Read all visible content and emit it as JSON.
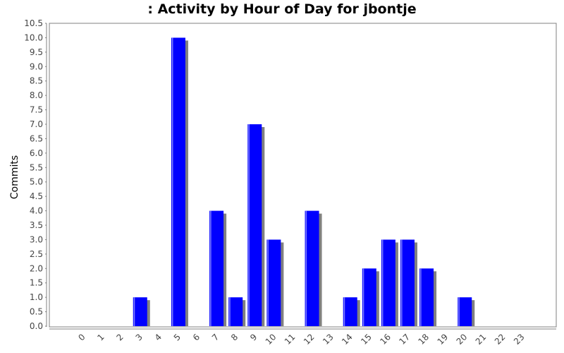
{
  "chart_data": {
    "type": "bar",
    "title": ": Activity by Hour of Day for jbontje",
    "xlabel": "",
    "ylabel": "Commits",
    "ylim": [
      0,
      10.5
    ],
    "y_tick_step": 0.5,
    "grid": false,
    "legend": "none",
    "categories": [
      "0",
      "1",
      "2",
      "3",
      "4",
      "5",
      "6",
      "7",
      "8",
      "9",
      "10",
      "11",
      "12",
      "13",
      "14",
      "15",
      "16",
      "17",
      "18",
      "19",
      "20",
      "21",
      "22",
      "23"
    ],
    "series": [
      {
        "values": [
          0,
          0,
          0,
          1,
          0,
          10,
          0,
          4,
          1,
          7,
          3,
          0,
          4,
          0,
          1,
          2,
          3,
          3,
          2,
          0,
          1,
          0,
          0,
          0
        ]
      }
    ],
    "colors": {
      "bar": "#0000ff",
      "bar_highlight": "#8080ff",
      "shadow": "#808080",
      "axis": "#808080"
    }
  }
}
